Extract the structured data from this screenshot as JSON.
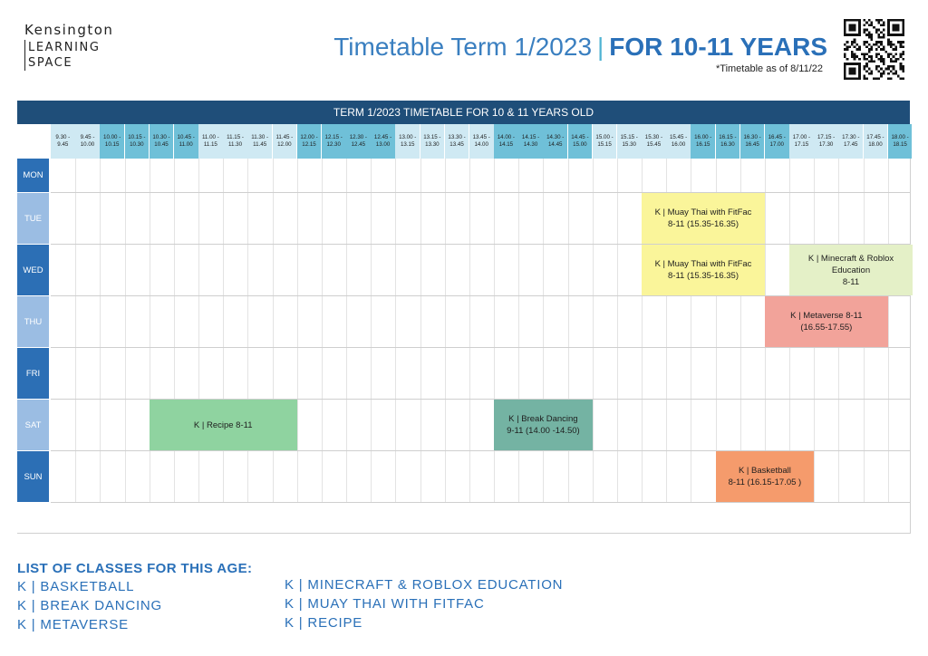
{
  "logo": {
    "line1": "Kensington",
    "line2": "LEARNING",
    "line3": "SPACE"
  },
  "title": {
    "main": "Timetable Term 1/2023",
    "separator": "|",
    "highlight": "FOR 10-11 YEARS"
  },
  "as_of": "*Timetable as of 8/11/22",
  "qr_code": {
    "icon": "qr-code-icon"
  },
  "timetable": {
    "heading": "TERM 1/2023 TIMETABLE FOR 10 & 11 YEARS OLD",
    "times": [
      [
        "9.30 -",
        "9.45"
      ],
      [
        "9.45 -",
        "10.00"
      ],
      [
        "10.00 -",
        "10.15"
      ],
      [
        "10.15 -",
        "10.30"
      ],
      [
        "10.30 -",
        "10.45"
      ],
      [
        "10.45 -",
        "11.00"
      ],
      [
        "11.00 -",
        "11.15"
      ],
      [
        "11.15 -",
        "11.30"
      ],
      [
        "11.30 -",
        "11.45"
      ],
      [
        "11.45 -",
        "12.00"
      ],
      [
        "12.00 -",
        "12.15"
      ],
      [
        "12.15 -",
        "12.30"
      ],
      [
        "12.30 -",
        "12.45"
      ],
      [
        "12.45 -",
        "13.00"
      ],
      [
        "13.00 -",
        "13.15"
      ],
      [
        "13.15 -",
        "13.30"
      ],
      [
        "13.30 -",
        "13.45"
      ],
      [
        "13.45 -",
        "14.00"
      ],
      [
        "14.00 -",
        "14.15"
      ],
      [
        "14.15 -",
        "14.30"
      ],
      [
        "14.30 -",
        "14.45"
      ],
      [
        "14.45 -",
        "15.00"
      ],
      [
        "15.00 -",
        "15.15"
      ],
      [
        "15.15 -",
        "15.30"
      ],
      [
        "15.30 -",
        "15.45"
      ],
      [
        "15.45 -",
        "16.00"
      ],
      [
        "16.00 -",
        "16.15"
      ],
      [
        "16.15 -",
        "16.30"
      ],
      [
        "16.30 -",
        "16.45"
      ],
      [
        "16.45 -",
        "17.00"
      ],
      [
        "17.00 -",
        "17.15"
      ],
      [
        "17.15 -",
        "17.30"
      ],
      [
        "17.30 -",
        "17.45"
      ],
      [
        "17.45 -",
        "18.00"
      ],
      [
        "18.00 -",
        "18.15"
      ]
    ],
    "days": [
      "MON",
      "TUE",
      "WED",
      "THU",
      "FRI",
      "SAT",
      "SUN"
    ],
    "events": [
      {
        "day": "TUE",
        "start_slot": 24,
        "end_slot": 29,
        "lines": [
          "K | Muay Thai with FitFac",
          "8-11 (15.35-16.35)"
        ],
        "color": "#faf59a"
      },
      {
        "day": "WED",
        "start_slot": 24,
        "end_slot": 29,
        "lines": [
          "K | Muay Thai with FitFac",
          "8-11 (15.35-16.35)"
        ],
        "color": "#faf59a"
      },
      {
        "day": "WED",
        "start_slot": 30,
        "end_slot": 35,
        "lines": [
          "K | Minecraft & Roblox",
          "Education",
          "8-11"
        ],
        "color": "#e4f0c7"
      },
      {
        "day": "THU",
        "start_slot": 29,
        "end_slot": 34,
        "lines": [
          "K | Metaverse 8-11",
          "(16.55-17.55)"
        ],
        "color": "#f2a39a"
      },
      {
        "day": "SAT",
        "start_slot": 4,
        "end_slot": 10,
        "lines": [
          "K | Recipe 8-11"
        ],
        "color": "#8fd3a0"
      },
      {
        "day": "SAT",
        "start_slot": 18,
        "end_slot": 22,
        "lines": [
          "K | Break Dancing",
          "9-11 (14.00 -14.50)"
        ],
        "color": "#74b3a3"
      },
      {
        "day": "SUN",
        "start_slot": 27,
        "end_slot": 31,
        "lines": [
          "K | Basketball",
          "8-11 (16.15-17.05 )"
        ],
        "color": "#f59b6c"
      }
    ]
  },
  "class_list": {
    "title": "LIST OF CLASSES FOR THIS AGE:",
    "left": [
      "K | BASKETBALL",
      "K | BREAK DANCING",
      "K | METAVERSE"
    ],
    "right": [
      "K | MINECRAFT & ROBLOX EDUCATION",
      "K | MUAY THAI WITH FITFAC",
      "K | RECIPE"
    ]
  },
  "colors": {
    "header_band": "#1f4e79",
    "time_light": "#cfe9f3",
    "time_dark": "#6fc0d8",
    "day_dark": "#2c6fb5",
    "day_light": "#9bbde3",
    "accent_text": "#2a70b8"
  }
}
